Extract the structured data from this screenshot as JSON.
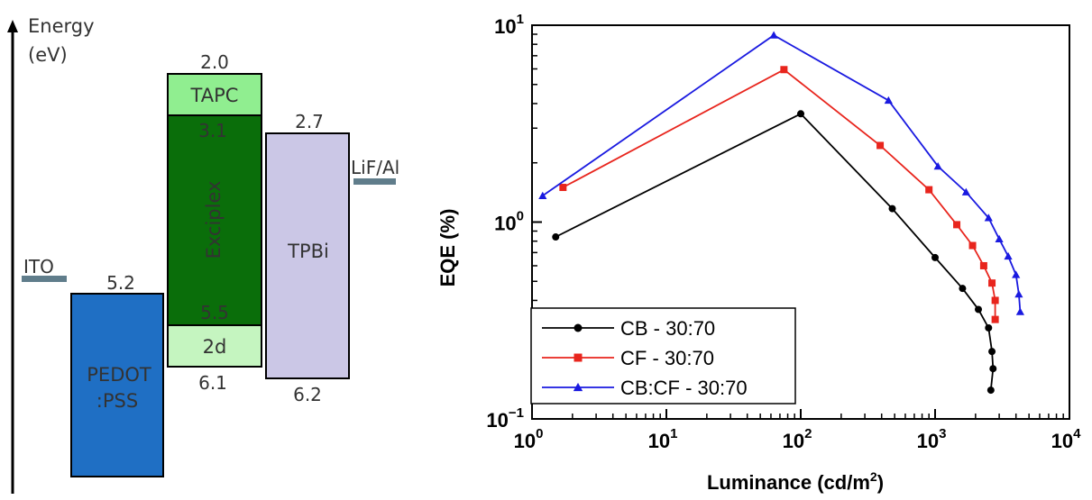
{
  "energy_diagram": {
    "axis_title_line1": "Energy",
    "axis_title_line2": "(eV)",
    "electrodes": [
      {
        "label": "ITO",
        "level": 4.8
      },
      {
        "label": "LiF/Al",
        "level": 3.0
      }
    ],
    "layers": [
      {
        "name": "PEDOT :PSS",
        "line1": "PEDOT",
        "line2": ":PSS",
        "top_label": "5.2",
        "top": 5.2,
        "bottom": 7.2,
        "color": "#1f6fc4"
      },
      {
        "name": "TAPC",
        "top_label": "2.0",
        "top": 2.0,
        "bottom": 3.1,
        "color": "#90ee90"
      },
      {
        "name": "Exciplex",
        "top_label": "3.1",
        "bottom_label": "5.5",
        "top": 3.1,
        "bottom": 5.5,
        "color": "#0a6e0a"
      },
      {
        "name": "2d",
        "bottom_label": "6.1",
        "top": 5.5,
        "bottom": 6.1,
        "color": "#c5f5c0"
      },
      {
        "name": "TPBi",
        "top_label": "2.7",
        "bottom_label": "6.2",
        "top": 2.7,
        "bottom": 6.2,
        "color": "#cbc7e6"
      }
    ],
    "electrode_color": "#607d8b"
  },
  "chart_data": {
    "type": "line",
    "xlabel": "Luminance (cd/m²)",
    "ylabel": "EQE (%)",
    "x_scale": "log",
    "y_scale": "log",
    "xlim": [
      1,
      10000
    ],
    "ylim": [
      0.1,
      10
    ],
    "x_ticks": [
      {
        "value": 1,
        "base": "10",
        "exp": "0"
      },
      {
        "value": 10,
        "base": "10",
        "exp": "1"
      },
      {
        "value": 100,
        "base": "10",
        "exp": "2"
      },
      {
        "value": 1000,
        "base": "10",
        "exp": "3"
      },
      {
        "value": 10000,
        "base": "10",
        "exp": "4"
      }
    ],
    "y_ticks": [
      {
        "value": 0.1,
        "base": "10",
        "exp": "−1"
      },
      {
        "value": 1,
        "base": "10",
        "exp": "0"
      },
      {
        "value": 10,
        "base": "10",
        "exp": "1"
      }
    ],
    "grid": false,
    "legend_position": "bottom-left",
    "series": [
      {
        "name": "CB - 30:70",
        "color": "#000000",
        "marker": "circle",
        "points": [
          [
            1.5,
            0.84
          ],
          [
            100,
            3.55
          ],
          [
            480,
            1.17
          ],
          [
            1000,
            0.66
          ],
          [
            1600,
            0.46
          ],
          [
            2100,
            0.36
          ],
          [
            2500,
            0.29
          ],
          [
            2650,
            0.22
          ],
          [
            2700,
            0.18
          ],
          [
            2600,
            0.14
          ]
        ]
      },
      {
        "name": "CF - 30:70",
        "color": "#e8251d",
        "marker": "square",
        "points": [
          [
            1.7,
            1.5
          ],
          [
            75,
            5.95
          ],
          [
            390,
            2.45
          ],
          [
            900,
            1.46
          ],
          [
            1450,
            0.97
          ],
          [
            1900,
            0.76
          ],
          [
            2300,
            0.6
          ],
          [
            2650,
            0.49
          ],
          [
            2800,
            0.4
          ],
          [
            2800,
            0.32
          ]
        ]
      },
      {
        "name": "CB:CF - 30:70",
        "color": "#1a1ae0",
        "marker": "triangle",
        "points": [
          [
            1.2,
            1.36
          ],
          [
            63,
            8.9
          ],
          [
            450,
            4.15
          ],
          [
            1050,
            1.92
          ],
          [
            1700,
            1.42
          ],
          [
            2500,
            1.05
          ],
          [
            3000,
            0.82
          ],
          [
            3500,
            0.67
          ],
          [
            4000,
            0.54
          ],
          [
            4200,
            0.43
          ],
          [
            4300,
            0.35
          ]
        ]
      }
    ]
  }
}
